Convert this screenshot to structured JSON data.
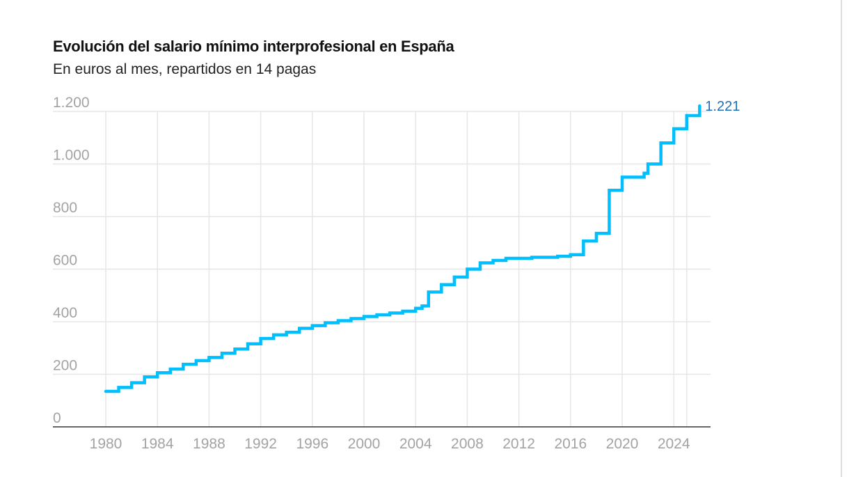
{
  "chart_data": {
    "type": "line",
    "step": true,
    "title": "Evolución del salario mínimo interprofesional en España",
    "subtitle": "En euros al mes, repartidos en 14 pagas",
    "xlabel": "",
    "ylabel": "",
    "xlim": [
      1980,
      2026
    ],
    "ylim": [
      0,
      1200
    ],
    "grid": true,
    "y_ticks": [
      {
        "value": 0,
        "label": "0"
      },
      {
        "value": 200,
        "label": "200"
      },
      {
        "value": 400,
        "label": "400"
      },
      {
        "value": 600,
        "label": "600"
      },
      {
        "value": 800,
        "label": "800"
      },
      {
        "value": 1000,
        "label": "1.000"
      },
      {
        "value": 1200,
        "label": "1.200"
      }
    ],
    "x_ticks": [
      {
        "value": 1980,
        "label": "1980"
      },
      {
        "value": 1984,
        "label": "1984"
      },
      {
        "value": 1988,
        "label": "1988"
      },
      {
        "value": 1992,
        "label": "1992"
      },
      {
        "value": 1996,
        "label": "1996"
      },
      {
        "value": 2000,
        "label": "2000"
      },
      {
        "value": 2004,
        "label": "2004"
      },
      {
        "value": 2008,
        "label": "2008"
      },
      {
        "value": 2012,
        "label": "2012"
      },
      {
        "value": 2016,
        "label": "2016"
      },
      {
        "value": 2020,
        "label": "2020"
      },
      {
        "value": 2024,
        "label": "2024"
      }
    ],
    "extra_gridline_x": 2025,
    "series": [
      {
        "name": "Salario mínimo interprofesional",
        "color": "#00bfff",
        "points": [
          [
            1980,
            135
          ],
          [
            1981,
            150
          ],
          [
            1982,
            168
          ],
          [
            1983,
            190
          ],
          [
            1984,
            206
          ],
          [
            1985,
            220
          ],
          [
            1986,
            238
          ],
          [
            1987,
            252
          ],
          [
            1988,
            264
          ],
          [
            1989,
            280
          ],
          [
            1990,
            296
          ],
          [
            1991,
            316
          ],
          [
            1992,
            336
          ],
          [
            1993,
            350
          ],
          [
            1994,
            360
          ],
          [
            1995,
            375
          ],
          [
            1996,
            385
          ],
          [
            1997,
            396
          ],
          [
            1998,
            404
          ],
          [
            1999,
            412
          ],
          [
            2000,
            420
          ],
          [
            2001,
            426
          ],
          [
            2002,
            433
          ],
          [
            2003,
            440
          ],
          [
            2004,
            451
          ],
          [
            2004.5,
            460
          ],
          [
            2005,
            513
          ],
          [
            2006,
            541
          ],
          [
            2007,
            570
          ],
          [
            2008,
            600
          ],
          [
            2009,
            624
          ],
          [
            2010,
            633
          ],
          [
            2011,
            641
          ],
          [
            2012,
            641
          ],
          [
            2013,
            645
          ],
          [
            2014,
            645
          ],
          [
            2015,
            649
          ],
          [
            2016,
            655
          ],
          [
            2017,
            707
          ],
          [
            2018,
            736
          ],
          [
            2019,
            900
          ],
          [
            2020,
            950
          ],
          [
            2021,
            950
          ],
          [
            2021.7,
            965
          ],
          [
            2022,
            1000
          ],
          [
            2023,
            1080
          ],
          [
            2024,
            1134
          ],
          [
            2025,
            1184
          ],
          [
            2026,
            1221
          ]
        ]
      }
    ],
    "annotations": [
      {
        "x": 2026,
        "y": 1221,
        "text": "1.221",
        "color": "#1f6fb5"
      }
    ]
  }
}
